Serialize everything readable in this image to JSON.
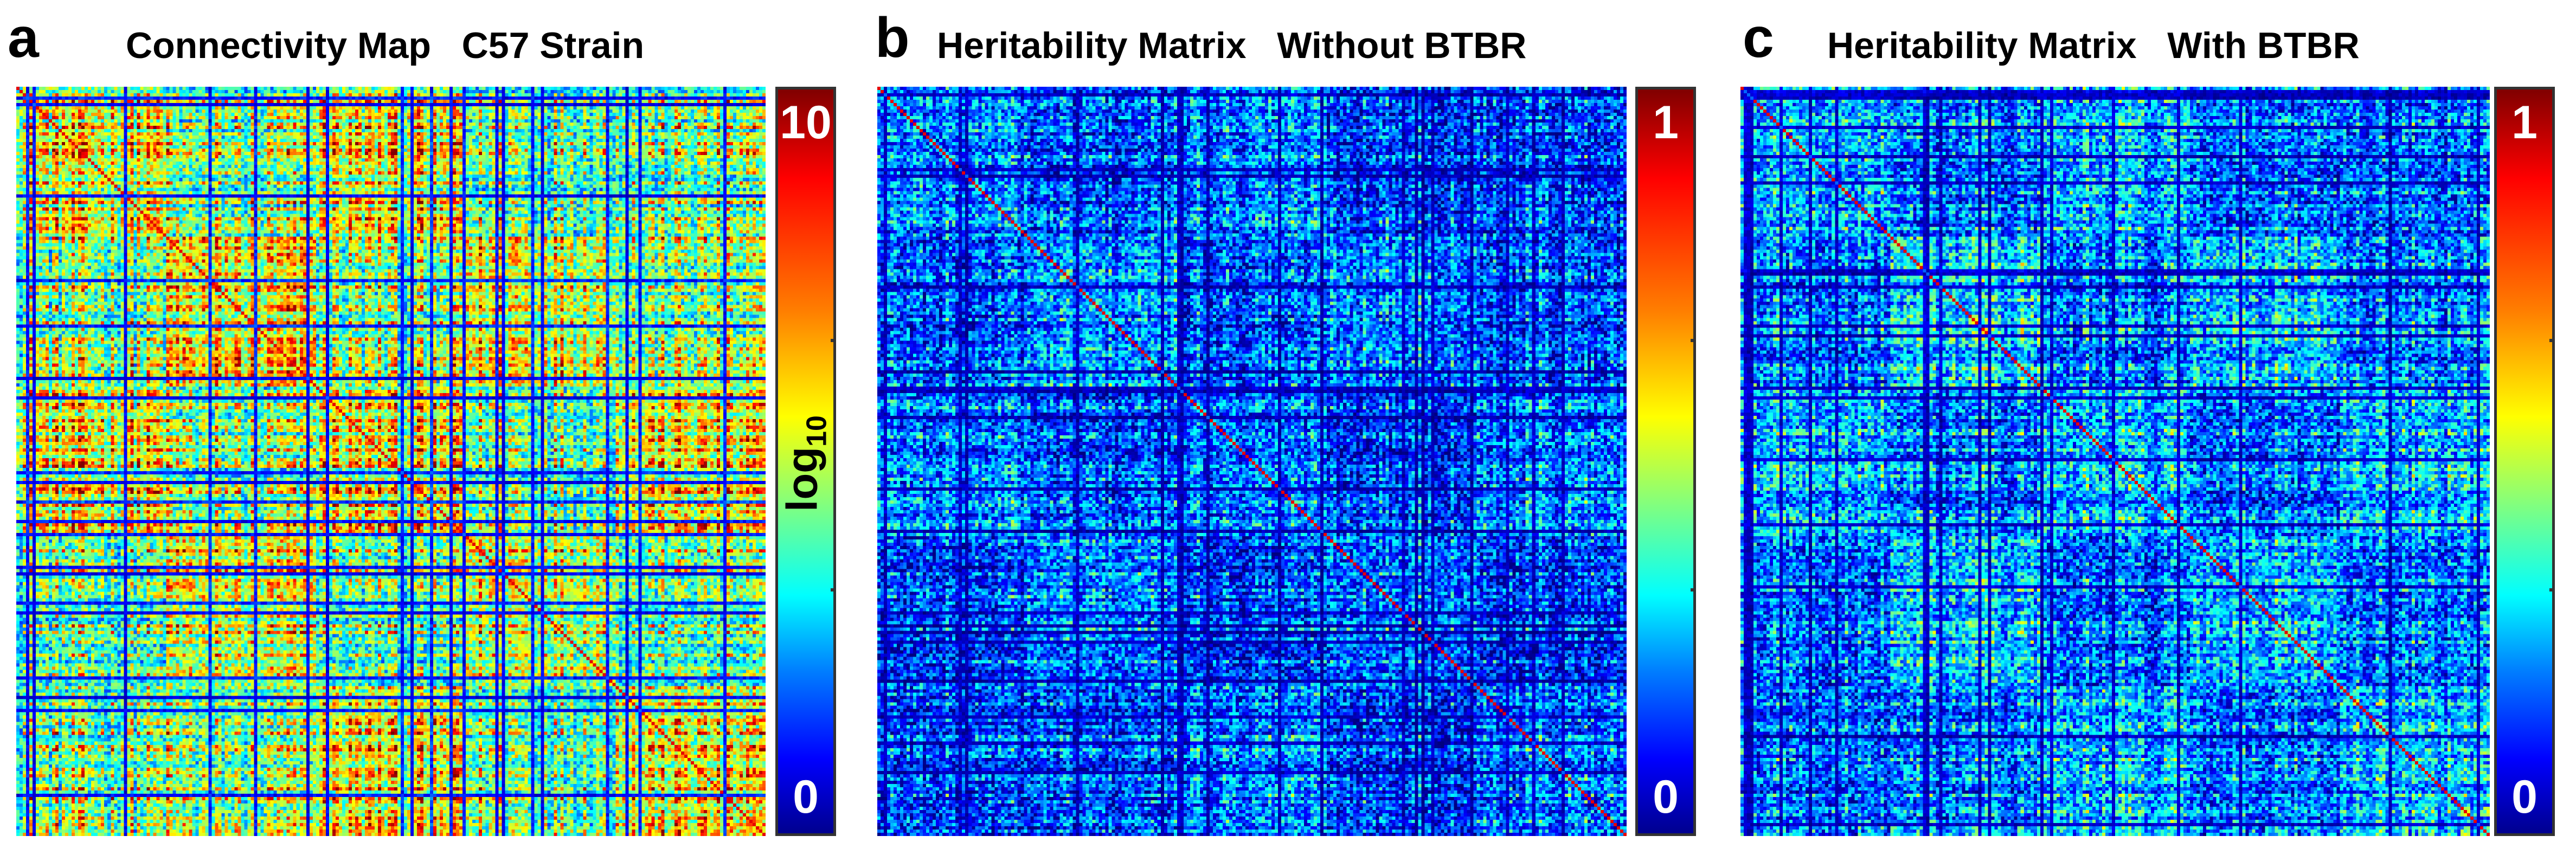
{
  "chart_data": [
    {
      "type": "heatmap",
      "panel": "a",
      "title": "Connectivity Map   C57 Strain",
      "colorbar": {
        "min": "0",
        "max": "10",
        "label_base": "log",
        "label_sub": "10",
        "colormap": "jet"
      },
      "zlim": [
        0,
        10
      ]
    },
    {
      "type": "heatmap",
      "panel": "b",
      "title": "Heritability Matrix   Without BTBR",
      "colorbar": {
        "min": "0",
        "max": "1",
        "colormap": "jet"
      },
      "zlim": [
        0,
        1
      ]
    },
    {
      "type": "heatmap",
      "panel": "c",
      "title": "Heritability Matrix   With BTBR",
      "colorbar": {
        "min": "0",
        "max": "1",
        "colormap": "jet"
      },
      "zlim": [
        0,
        1
      ]
    }
  ]
}
